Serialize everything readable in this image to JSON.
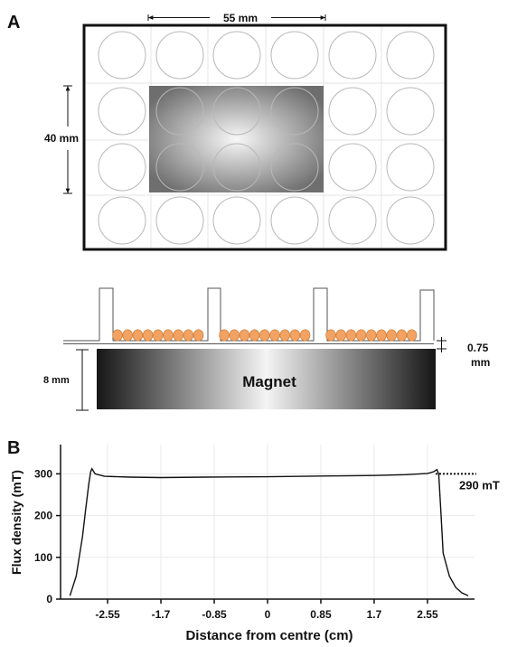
{
  "panel_a": {
    "label": "A",
    "width_dimension": "55 mm",
    "height_dimension": "40 mm",
    "well_grid": {
      "rows": 4,
      "columns": 6
    },
    "magnet_region": {
      "rows": [
        2,
        3
      ],
      "columns": [
        2,
        3,
        4
      ]
    },
    "magnet_label": "Magnet",
    "magnet_height_dimension": "8 mm",
    "gap_dimension_line1": "0.75",
    "gap_dimension_line2": "mm",
    "cells_per_well": 9,
    "colors": {
      "cell_fill": "#f2a262",
      "cell_stroke": "#c9772e",
      "well_stroke": "#b8b8b8",
      "magnet_light": "#f4f4f4",
      "magnet_dark": "#161616"
    }
  },
  "panel_b": {
    "label": "B",
    "annotation": "290 mT",
    "chart_data": {
      "type": "line",
      "title": "",
      "xlabel": "Distance from centre (cm)",
      "ylabel": "Flux density (mT)",
      "x_ticks": [
        "-2.55",
        "-1.7",
        "-0.85",
        "0",
        "0.85",
        "1.7",
        "2.55"
      ],
      "y_ticks": [
        "0",
        "100",
        "200",
        "300"
      ],
      "xlim": [
        -3.3,
        3.3
      ],
      "ylim": [
        0,
        370
      ],
      "grid": true,
      "series": [
        {
          "x": [
            -3.15,
            -3.05,
            -2.95,
            -2.9,
            -2.85,
            -2.82,
            -2.8,
            -2.75,
            -2.6,
            -2.2,
            -1.7,
            -1.0,
            0,
            1.0,
            1.7,
            2.2,
            2.55,
            2.65,
            2.7,
            2.73,
            2.76,
            2.8,
            2.9,
            3.0,
            3.1,
            3.2
          ],
          "y": [
            8,
            55,
            150,
            215,
            275,
            305,
            312,
            300,
            294,
            292,
            291,
            292,
            293,
            295,
            296,
            298,
            301,
            305,
            310,
            300,
            220,
            110,
            55,
            28,
            15,
            8
          ]
        }
      ]
    }
  }
}
